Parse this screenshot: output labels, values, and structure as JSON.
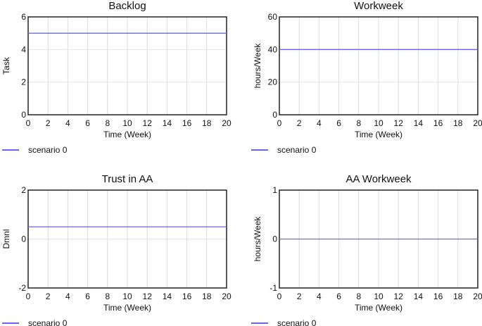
{
  "chart_data": [
    {
      "type": "line",
      "title": "Backlog",
      "xlabel": "Time (Week)",
      "ylabel": "Task",
      "xlim": [
        0,
        20
      ],
      "ylim": [
        0,
        6
      ],
      "xticks": [
        0,
        2,
        4,
        6,
        8,
        10,
        12,
        14,
        16,
        18,
        20
      ],
      "yticks": [
        0,
        2,
        4,
        6
      ],
      "grid": true,
      "legend_placement": "bottom-left",
      "series": [
        {
          "name": "scenario 0",
          "color": "#6666ee",
          "x": [
            0,
            20
          ],
          "y": [
            5,
            5
          ]
        }
      ]
    },
    {
      "type": "line",
      "title": "Workweek",
      "xlabel": "Time (Week)",
      "ylabel": "hours/Week",
      "xlim": [
        0,
        20
      ],
      "ylim": [
        0,
        60
      ],
      "xticks": [
        0,
        2,
        4,
        6,
        8,
        10,
        12,
        14,
        16,
        18,
        20
      ],
      "yticks": [
        0,
        20,
        40,
        60
      ],
      "grid": true,
      "legend_placement": "bottom-left",
      "series": [
        {
          "name": "scenario 0",
          "color": "#6666ee",
          "x": [
            0,
            20
          ],
          "y": [
            40,
            40
          ]
        }
      ]
    },
    {
      "type": "line",
      "title": "Trust in AA",
      "xlabel": "Time (Week)",
      "ylabel": "Dmnl",
      "xlim": [
        0,
        20
      ],
      "ylim": [
        -2,
        2
      ],
      "xticks": [
        0,
        2,
        4,
        6,
        8,
        10,
        12,
        14,
        16,
        18,
        20
      ],
      "yticks": [
        -2,
        0,
        2
      ],
      "grid": true,
      "legend_placement": "bottom-left",
      "series": [
        {
          "name": "scenario 0",
          "color": "#6666ee",
          "x": [
            0,
            20
          ],
          "y": [
            0.5,
            0.5
          ]
        }
      ]
    },
    {
      "type": "line",
      "title": "AA Workweek",
      "xlabel": "Time (Week)",
      "ylabel": "hours/Week",
      "xlim": [
        0,
        20
      ],
      "ylim": [
        -1,
        1
      ],
      "xticks": [
        0,
        2,
        4,
        6,
        8,
        10,
        12,
        14,
        16,
        18,
        20
      ],
      "yticks": [
        -1,
        0,
        1
      ],
      "grid": true,
      "legend_placement": "bottom-left",
      "series": [
        {
          "name": "scenario 0",
          "color": "#6666ee",
          "x": [
            0,
            20
          ],
          "y": [
            0,
            0
          ]
        }
      ]
    }
  ]
}
